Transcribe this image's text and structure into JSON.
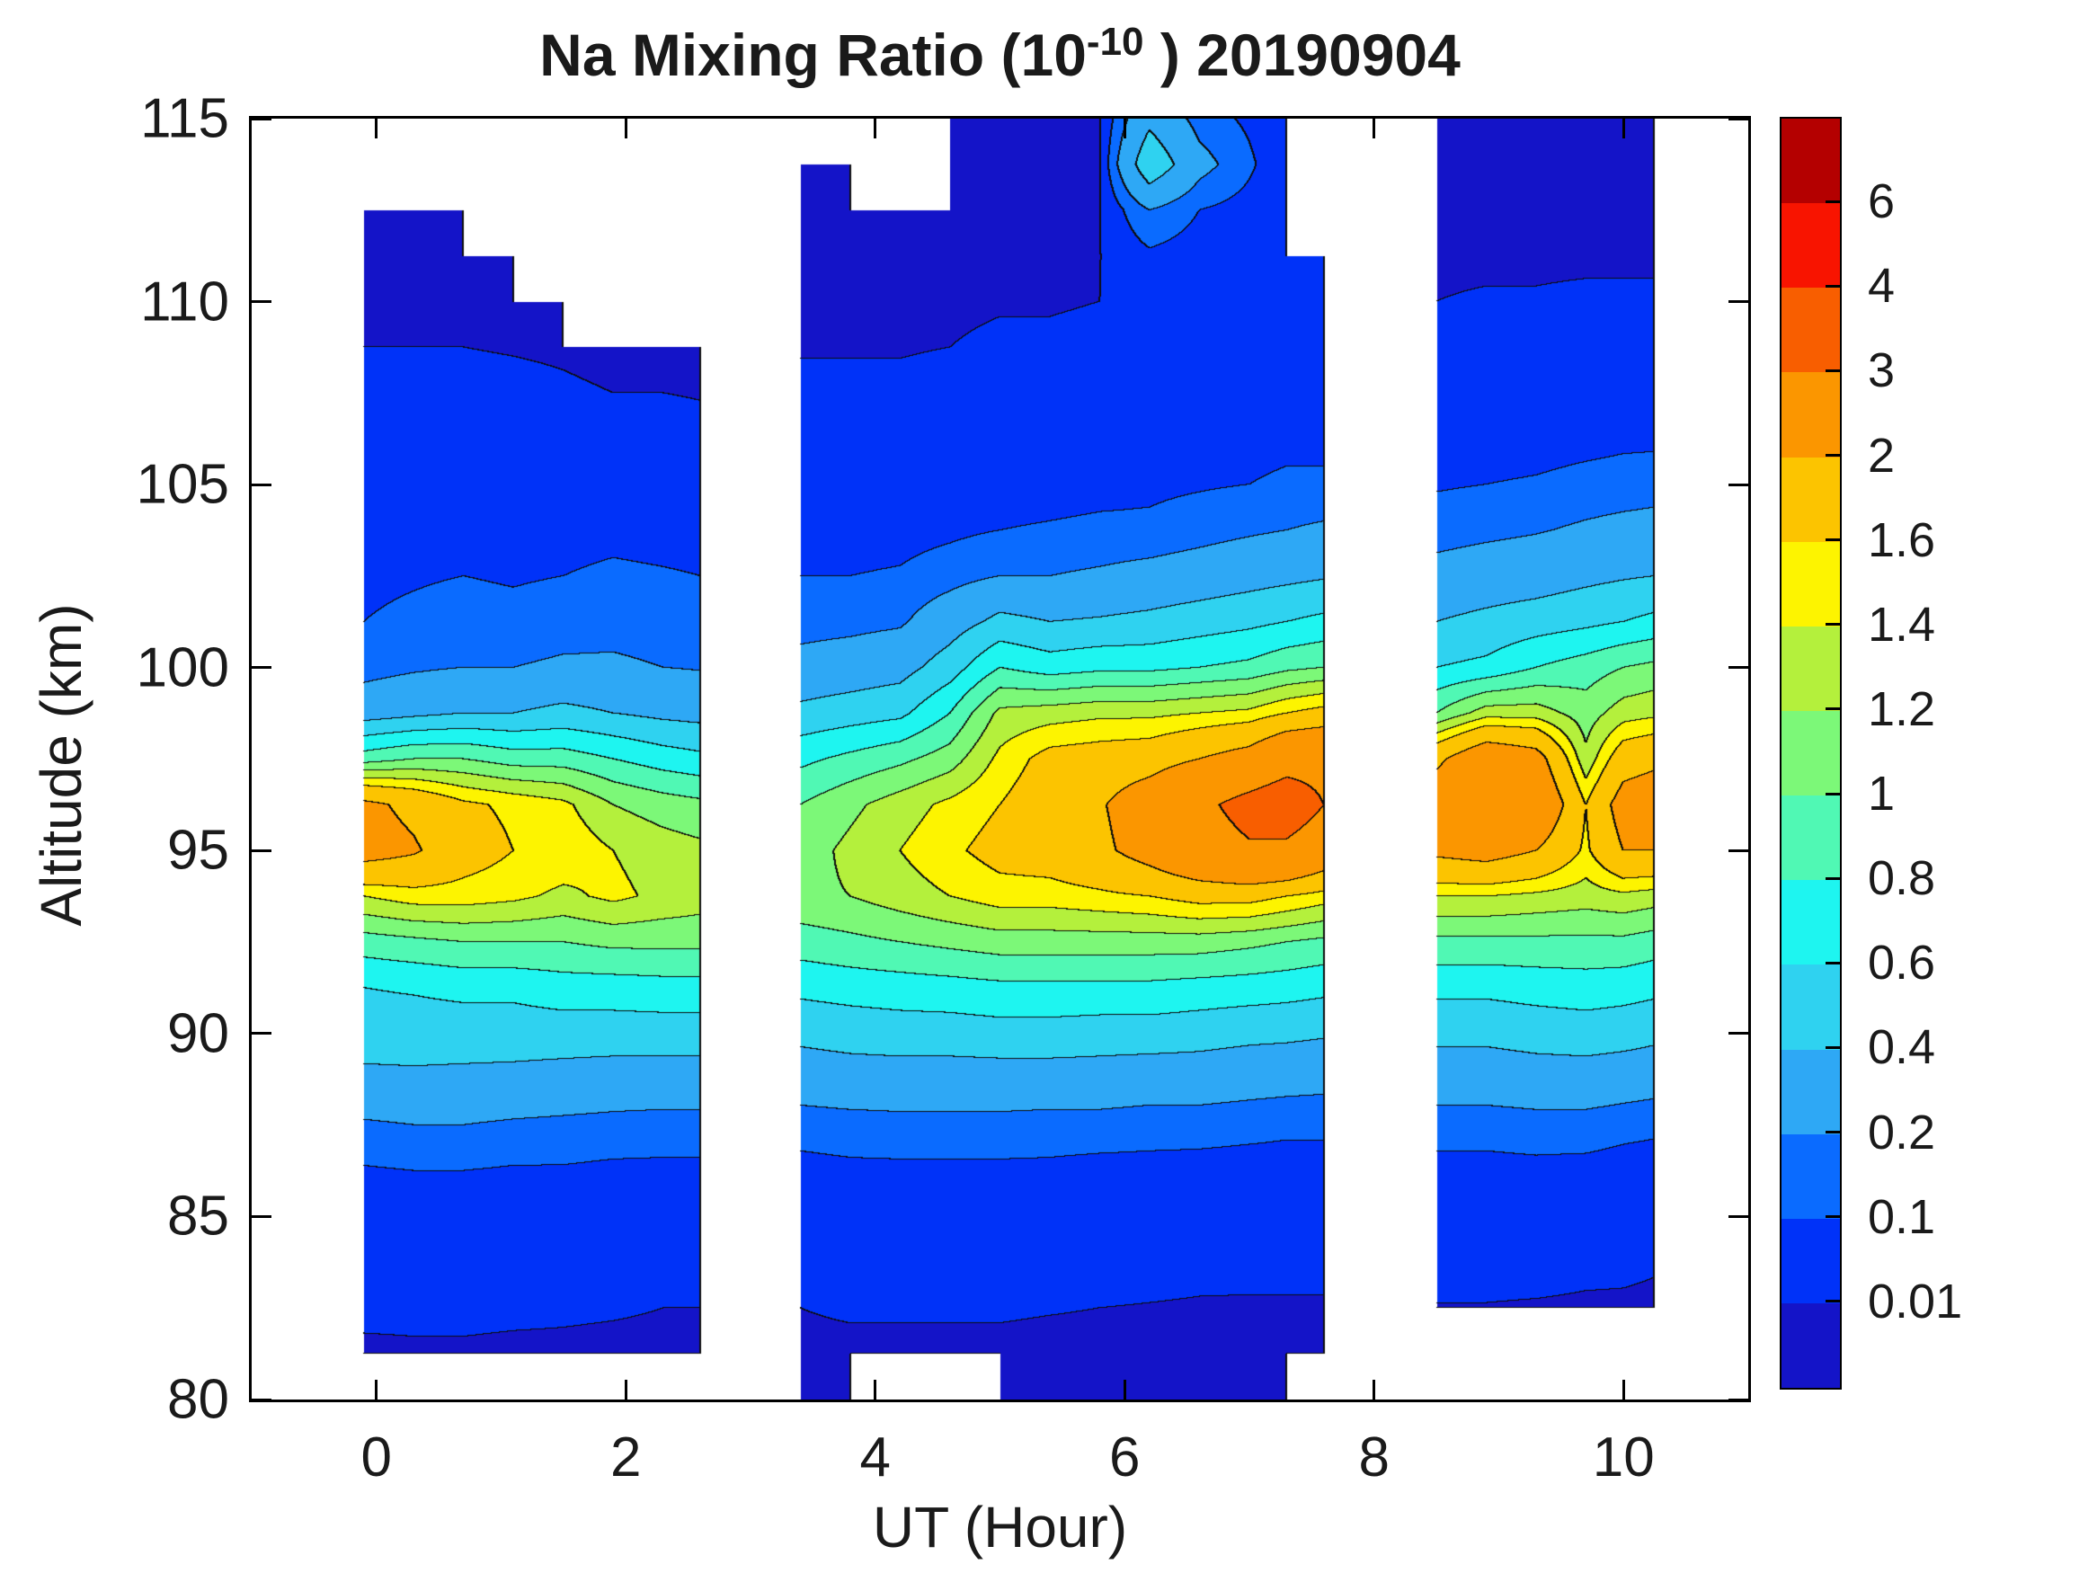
{
  "chart_data": {
    "type": "filled-contour",
    "title": {
      "prefix": "Na Mixing Ratio (10",
      "sup": "-10",
      "suffix": " ) 20190904",
      "full": "Na Mixing Ratio (10^-10 ) 20190904"
    },
    "xlabel": "UT (Hour)",
    "ylabel": "Altitude (km)",
    "xlim": [
      -1,
      11
    ],
    "ylim": [
      80,
      115
    ],
    "x_ticks": [
      {
        "v": 0,
        "label": "0"
      },
      {
        "v": 2,
        "label": "2"
      },
      {
        "v": 4,
        "label": "4"
      },
      {
        "v": 6,
        "label": "6"
      },
      {
        "v": 8,
        "label": "8"
      },
      {
        "v": 10,
        "label": "10"
      }
    ],
    "y_ticks": [
      {
        "v": 80,
        "label": "80"
      },
      {
        "v": 85,
        "label": "85"
      },
      {
        "v": 90,
        "label": "90"
      },
      {
        "v": 95,
        "label": "95"
      },
      {
        "v": 100,
        "label": "100"
      },
      {
        "v": 105,
        "label": "105"
      },
      {
        "v": 110,
        "label": "110"
      },
      {
        "v": 115,
        "label": "115"
      }
    ],
    "levels": [
      0.01,
      0.1,
      0.2,
      0.4,
      0.6,
      0.8,
      1,
      1.2,
      1.4,
      1.6,
      2,
      3,
      4,
      6
    ],
    "band_colors": [
      "#1414c8",
      "#0032f8",
      "#0a6bff",
      "#2ea8f5",
      "#2fd2f0",
      "#1ef5f0",
      "#50f8b4",
      "#7cf878",
      "#b4f03c",
      "#fdf400",
      "#fcc400",
      "#fb9600",
      "#f85e00",
      "#f81400",
      "#b40000"
    ],
    "contour_line_color": "#0d0d0d",
    "colorbar_labels_top_to_bottom": [
      "6",
      "4",
      "3",
      "2",
      "1.6",
      "1.4",
      "1.2",
      "1",
      "0.8",
      "0.6",
      "0.4",
      "0.2",
      "0.1",
      "0.01"
    ],
    "data_gaps_hours": [
      [
        2.6,
        3.4
      ],
      [
        7.6,
        8.5
      ]
    ],
    "grid": {
      "altitudes_top_to_bottom": [
        115,
        113.75,
        112.5,
        111.25,
        110,
        108.75,
        107.5,
        106.25,
        105,
        103.75,
        102.5,
        101.25,
        100,
        98.75,
        97.5,
        96.25,
        95,
        93.75,
        92.5,
        91.25,
        90,
        88.75,
        87.5,
        86.25,
        85,
        83.75,
        82.5,
        81.25,
        80
      ],
      "columns": [
        {
          "hour": -0.1,
          "values": [
            null,
            null,
            0.005,
            0.006,
            0.008,
            0.01,
            0.02,
            0.03,
            0.04,
            0.06,
            0.08,
            0.1,
            0.15,
            0.3,
            0.9,
            2.1,
            2.2,
            1.4,
            0.9,
            0.6,
            0.5,
            0.35,
            0.18,
            0.09,
            0.05,
            0.03,
            0.015,
            0.006,
            null
          ]
        },
        {
          "hour": 0.3,
          "values": [
            null,
            0.005,
            0.005,
            0.006,
            0.008,
            0.01,
            0.015,
            0.025,
            0.04,
            0.06,
            0.09,
            0.12,
            0.18,
            0.35,
            1.0,
            1.9,
            2.05,
            1.5,
            0.95,
            0.62,
            0.5,
            0.36,
            0.2,
            0.1,
            0.05,
            0.03,
            0.015,
            0.007,
            null
          ]
        },
        {
          "hour": 0.7,
          "values": [
            null,
            null,
            0.005,
            0.006,
            0.007,
            0.01,
            0.015,
            0.025,
            0.04,
            0.07,
            0.1,
            0.14,
            0.2,
            0.4,
            1.0,
            1.65,
            1.75,
            1.5,
            1.0,
            0.65,
            0.5,
            0.35,
            0.2,
            0.1,
            0.05,
            0.03,
            0.015,
            0.007,
            null
          ]
        },
        {
          "hour": 1.1,
          "values": [
            null,
            null,
            null,
            0.005,
            0.007,
            0.009,
            0.014,
            0.022,
            0.035,
            0.06,
            0.09,
            0.13,
            0.2,
            0.4,
            0.9,
            1.55,
            1.6,
            1.45,
            1.0,
            0.65,
            0.5,
            0.34,
            0.18,
            0.09,
            0.05,
            0.028,
            0.014,
            0.006,
            null
          ]
        },
        {
          "hour": 1.5,
          "values": [
            null,
            null,
            null,
            null,
            0.006,
            0.008,
            0.012,
            0.02,
            0.035,
            0.06,
            0.1,
            0.15,
            0.22,
            0.45,
            0.9,
            1.45,
            1.55,
            1.35,
            1.0,
            0.7,
            0.5,
            0.32,
            0.17,
            0.09,
            0.05,
            0.028,
            0.013,
            0.006,
            null
          ]
        },
        {
          "hour": 1.9,
          "values": [
            null,
            null,
            null,
            null,
            null,
            0.006,
            0.01,
            0.018,
            0.035,
            0.07,
            0.12,
            0.16,
            0.22,
            0.4,
            0.8,
            1.2,
            1.4,
            1.45,
            1.05,
            0.7,
            0.5,
            0.3,
            0.16,
            0.08,
            0.045,
            0.025,
            0.012,
            0.005,
            null
          ]
        },
        {
          "hour": 2.3,
          "values": [
            null,
            null,
            null,
            null,
            null,
            0.006,
            0.01,
            0.017,
            0.03,
            0.06,
            0.11,
            0.15,
            0.2,
            0.35,
            0.7,
            1.1,
            1.3,
            1.35,
            1.05,
            0.72,
            0.5,
            0.3,
            0.15,
            0.08,
            0.04,
            0.022,
            0.01,
            0.005,
            null
          ]
        },
        {
          "hour": 2.6,
          "values": [
            null,
            null,
            null,
            null,
            null,
            0.006,
            0.009,
            0.015,
            0.028,
            0.055,
            0.1,
            0.14,
            0.19,
            0.33,
            0.65,
            1.05,
            1.25,
            1.3,
            1.05,
            0.72,
            0.5,
            0.3,
            0.15,
            0.08,
            0.04,
            0.02,
            0.01,
            0.005,
            null
          ]
        },
        {
          "hour": 3.4,
          "values": [
            0.004,
            0.005,
            0.005,
            0.006,
            0.007,
            0.009,
            0.013,
            0.02,
            0.035,
            0.06,
            0.1,
            0.15,
            0.25,
            0.45,
            0.75,
            1.0,
            1.1,
            1.15,
            0.9,
            0.65,
            0.45,
            0.28,
            0.14,
            0.07,
            0.04,
            0.02,
            0.01,
            0.006,
            0.004
          ]
        },
        {
          "hour": 3.8,
          "values": [
            null,
            0.004,
            0.005,
            0.006,
            0.007,
            0.009,
            0.013,
            0.02,
            0.035,
            0.06,
            0.1,
            0.16,
            0.28,
            0.5,
            0.85,
            1.15,
            1.25,
            1.2,
            0.95,
            0.68,
            0.48,
            0.3,
            0.15,
            0.08,
            0.045,
            0.025,
            0.012,
            0.006,
            0.004
          ]
        },
        {
          "hour": 4.2,
          "values": [
            null,
            null,
            0.004,
            0.005,
            0.007,
            0.009,
            0.013,
            0.02,
            0.035,
            0.065,
            0.11,
            0.18,
            0.32,
            0.55,
            0.95,
            1.3,
            1.4,
            1.3,
            1.0,
            0.7,
            0.5,
            0.3,
            0.16,
            0.08,
            0.045,
            0.025,
            0.012,
            0.006,
            null
          ]
        },
        {
          "hour": 4.6,
          "values": [
            0.004,
            0.005,
            0.005,
            0.006,
            0.008,
            0.01,
            0.015,
            0.025,
            0.045,
            0.08,
            0.15,
            0.3,
            0.5,
            0.8,
            1.1,
            1.45,
            1.55,
            1.4,
            1.05,
            0.72,
            0.5,
            0.3,
            0.16,
            0.08,
            0.045,
            0.025,
            0.012,
            0.006,
            null
          ]
        },
        {
          "hour": 5.0,
          "values": [
            0.004,
            0.005,
            0.006,
            0.007,
            0.009,
            0.012,
            0.018,
            0.03,
            0.055,
            0.1,
            0.2,
            0.45,
            0.8,
            1.25,
            1.45,
            1.6,
            1.7,
            1.5,
            1.1,
            0.75,
            0.52,
            0.3,
            0.16,
            0.08,
            0.04,
            0.022,
            0.012,
            0.006,
            0.004
          ]
        },
        {
          "hour": 5.4,
          "values": [
            0.004,
            0.005,
            0.006,
            0.007,
            0.009,
            0.012,
            0.02,
            0.035,
            0.06,
            0.11,
            0.2,
            0.4,
            0.7,
            1.3,
            1.7,
            1.8,
            1.75,
            1.5,
            1.1,
            0.75,
            0.52,
            0.3,
            0.15,
            0.08,
            0.04,
            0.022,
            0.011,
            0.005,
            0.004
          ]
        },
        {
          "hour": 5.8,
          "values": [
            0.004,
            0.005,
            0.006,
            0.008,
            0.01,
            0.013,
            0.022,
            0.038,
            0.07,
            0.12,
            0.22,
            0.42,
            0.75,
            1.35,
            1.75,
            1.95,
            1.9,
            1.55,
            1.1,
            0.75,
            0.5,
            0.3,
            0.15,
            0.07,
            0.038,
            0.02,
            0.01,
            0.005,
            0.004
          ]
        },
        {
          "hour": 6.2,
          "values": [
            0.35,
            0.55,
            0.2,
            0.08,
            0.03,
            0.02,
            0.025,
            0.045,
            0.08,
            0.12,
            0.25,
            0.45,
            0.75,
            1.35,
            1.8,
            2.3,
            2.2,
            1.6,
            1.1,
            0.75,
            0.5,
            0.28,
            0.14,
            0.07,
            0.035,
            0.018,
            0.009,
            0.005,
            0.004
          ]
        },
        {
          "hour": 6.6,
          "values": [
            0.15,
            0.25,
            0.1,
            0.05,
            0.025,
            0.018,
            0.028,
            0.05,
            0.09,
            0.15,
            0.28,
            0.5,
            0.8,
            1.4,
            2.0,
            2.8,
            2.6,
            1.7,
            1.1,
            0.72,
            0.48,
            0.28,
            0.14,
            0.065,
            0.032,
            0.016,
            0.008,
            0.005,
            0.004
          ]
        },
        {
          "hour": 7.0,
          "values": [
            0.08,
            0.12,
            0.06,
            0.035,
            0.02,
            0.018,
            0.03,
            0.06,
            0.1,
            0.18,
            0.32,
            0.55,
            0.85,
            1.45,
            2.2,
            3.3,
            2.9,
            1.7,
            1.05,
            0.7,
            0.45,
            0.26,
            0.13,
            0.06,
            0.03,
            0.015,
            0.008,
            0.005,
            0.004
          ]
        },
        {
          "hour": 7.3,
          "values": [
            0.01,
            0.015,
            0.02,
            0.02,
            0.02,
            0.022,
            0.04,
            0.07,
            0.12,
            0.2,
            0.35,
            0.6,
            0.95,
            1.6,
            2.6,
            3.6,
            2.8,
            1.6,
            1.0,
            0.68,
            0.44,
            0.25,
            0.12,
            0.06,
            0.03,
            0.015,
            0.008,
            0.005,
            0.004
          ]
        },
        {
          "hour": 7.6,
          "values": [
            null,
            null,
            null,
            0.01,
            0.015,
            0.02,
            0.035,
            0.07,
            0.12,
            0.22,
            0.38,
            0.65,
            1.0,
            1.7,
            2.7,
            3.0,
            2.4,
            1.5,
            0.95,
            0.65,
            0.42,
            0.24,
            0.12,
            0.06,
            0.03,
            0.015,
            0.008,
            0.005,
            null
          ]
        },
        {
          "hour": 8.5,
          "values": [
            0.004,
            0.005,
            0.006,
            0.008,
            0.01,
            0.014,
            0.025,
            0.05,
            0.09,
            0.15,
            0.25,
            0.4,
            0.6,
            1.0,
            1.9,
            2.3,
            2.1,
            1.4,
            0.95,
            0.65,
            0.45,
            0.28,
            0.14,
            0.07,
            0.035,
            0.018,
            0.009,
            null,
            null
          ]
        },
        {
          "hour": 8.9,
          "values": [
            0.004,
            0.005,
            0.006,
            0.008,
            0.011,
            0.016,
            0.028,
            0.055,
            0.1,
            0.17,
            0.28,
            0.45,
            0.65,
            1.3,
            2.4,
            2.75,
            2.2,
            1.4,
            0.95,
            0.65,
            0.45,
            0.28,
            0.14,
            0.07,
            0.035,
            0.018,
            0.009,
            null,
            null
          ]
        },
        {
          "hour": 9.3,
          "values": [
            0.004,
            0.005,
            0.006,
            0.008,
            0.011,
            0.016,
            0.03,
            0.06,
            0.11,
            0.19,
            0.3,
            0.5,
            0.8,
            1.3,
            2.2,
            2.5,
            2.0,
            1.35,
            0.95,
            0.68,
            0.48,
            0.3,
            0.15,
            0.075,
            0.035,
            0.018,
            0.008,
            null,
            null
          ]
        },
        {
          "hour": 9.7,
          "values": [
            0.004,
            0.005,
            0.006,
            0.008,
            0.012,
            0.018,
            0.035,
            0.07,
            0.13,
            0.22,
            0.35,
            0.55,
            0.9,
            1.1,
            1.25,
            1.6,
            1.55,
            1.3,
            0.95,
            0.7,
            0.5,
            0.3,
            0.15,
            0.07,
            0.03,
            0.015,
            0.007,
            null,
            null
          ]
        },
        {
          "hour": 10.0,
          "values": [
            0.004,
            0.005,
            0.006,
            0.008,
            0.012,
            0.02,
            0.04,
            0.08,
            0.14,
            0.24,
            0.38,
            0.6,
            1.0,
            1.3,
            1.8,
            2.2,
            2.0,
            1.35,
            0.95,
            0.68,
            0.48,
            0.28,
            0.13,
            0.06,
            0.028,
            0.014,
            0.007,
            null,
            null
          ]
        },
        {
          "hour": 10.25,
          "values": [
            0.004,
            0.005,
            0.006,
            0.008,
            0.012,
            0.02,
            0.04,
            0.08,
            0.15,
            0.25,
            0.4,
            0.65,
            1.05,
            1.35,
            1.9,
            2.3,
            2.0,
            1.3,
            0.9,
            0.65,
            0.45,
            0.26,
            0.12,
            0.055,
            0.025,
            0.012,
            0.006,
            null,
            null
          ]
        }
      ]
    }
  }
}
